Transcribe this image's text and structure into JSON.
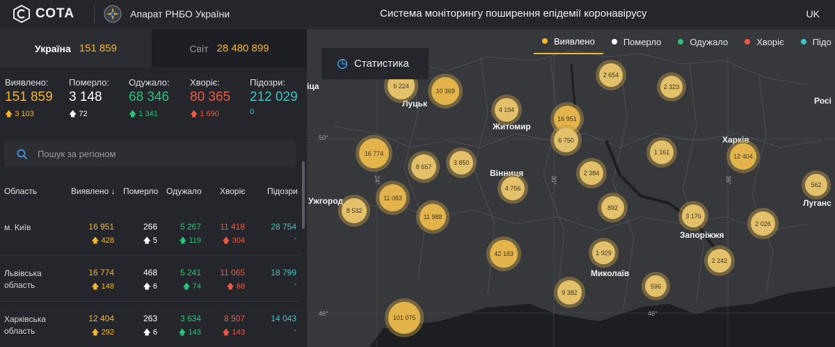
{
  "header": {
    "logo_text": "СОТА",
    "org_name": "Апарат РНБО України",
    "app_title": "Система моніторингу поширення епідемії коронавірусу",
    "lang": "UK"
  },
  "scope": {
    "ukraine_label": "Україна",
    "ukraine_value": "151 859",
    "world_label": "Світ",
    "world_value": "28 480 899"
  },
  "stats": [
    {
      "label": "Виявлено:",
      "value": "151 859",
      "delta": "3 103",
      "color": "yellow"
    },
    {
      "label": "Померло:",
      "value": "3 148",
      "delta": "72",
      "color": "white"
    },
    {
      "label": "Одужало:",
      "value": "68 346",
      "delta": "1 341",
      "color": "green"
    },
    {
      "label": "Хворіє:",
      "value": "80 365",
      "delta": "1 690",
      "color": "red"
    },
    {
      "label": "Підозри:",
      "value": "212 029",
      "delta": "0",
      "color": "teal"
    }
  ],
  "search": {
    "placeholder": "Пошук за регіоном"
  },
  "table": {
    "headers": [
      "Область",
      "Виявлено",
      "Померло",
      "Одужало",
      "Хворіє",
      "Підозри"
    ],
    "rows": [
      {
        "name": "м. Київ",
        "confirmed": "16 951",
        "confirmed_delta": "428",
        "deaths": "266",
        "deaths_delta": "5",
        "recovered": "5 267",
        "recovered_delta": "119",
        "sick": "11 418",
        "sick_delta": "304",
        "suspected": "28 754",
        "suspected_delta": "-"
      },
      {
        "name": "Львівська область",
        "confirmed": "16 774",
        "confirmed_delta": "148",
        "deaths": "468",
        "deaths_delta": "6",
        "recovered": "5 241",
        "recovered_delta": "74",
        "sick": "11 065",
        "sick_delta": "68",
        "suspected": "18 799",
        "suspected_delta": "-"
      },
      {
        "name": "Харківська область",
        "confirmed": "12 404",
        "confirmed_delta": "292",
        "deaths": "263",
        "deaths_delta": "6",
        "recovered": "3 634",
        "recovered_delta": "143",
        "sick": "8 507",
        "sick_delta": "143",
        "suspected": "14 043",
        "suspected_delta": "-"
      }
    ]
  },
  "map": {
    "stats_button": "Статистика",
    "legend": [
      {
        "label": "Виявлено",
        "color": "#f5b731"
      },
      {
        "label": "Померло",
        "color": "#ffffff"
      },
      {
        "label": "Одужало",
        "color": "#2cc37c"
      },
      {
        "label": "Хворіє",
        "color": "#ef5a43"
      },
      {
        "label": "Підо",
        "color": "#3fc4c4"
      }
    ],
    "cities": [
      "Луцьк",
      "Житомир",
      "Вінниця",
      "Ужгород",
      "Харків",
      "Запоріжжя",
      "Миколаїв",
      "Луганс",
      "Росі",
      "іца"
    ],
    "coords": [
      "50°",
      "24°",
      "30°",
      "36°",
      "46°",
      "46°"
    ],
    "bubbles": [
      "6 224",
      "10 369",
      "2 654",
      "2 323",
      "4 194",
      "16 951",
      "6 750",
      "16 774",
      "8 657",
      "3 850",
      "1 161",
      "12 404",
      "2 384",
      "4 756",
      "11 083",
      "8 532",
      "11 988",
      "892",
      "3 176",
      "2 026",
      "562",
      "1 929",
      "42 183",
      "2 242",
      "596",
      "9 382",
      "101 075"
    ]
  }
}
